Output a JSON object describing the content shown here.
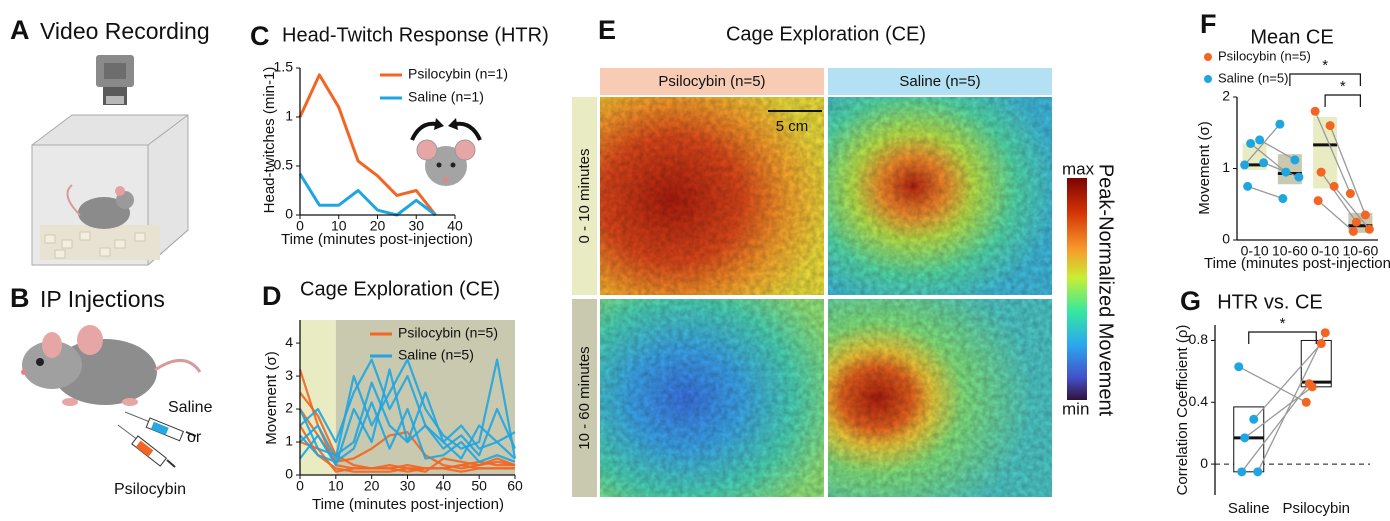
{
  "panels": {
    "A": {
      "letter": "A",
      "title": "Video Recording"
    },
    "B": {
      "letter": "B",
      "title": "IP Injections",
      "labels": [
        "Saline",
        "or",
        "Psilocybin"
      ]
    },
    "E": {
      "letter": "E",
      "title": "Cage Exploration (CE)",
      "columns": [
        "Psilocybin (n=5)",
        "Saline (n=5)"
      ],
      "rows": [
        "0 - 10 minutes",
        "10 - 60 minutes"
      ],
      "scale_bar": "5 cm",
      "colorbar": {
        "label": "Peak-Normalized Movement",
        "max": "max",
        "min": "min"
      }
    }
  },
  "chart_data": [
    {
      "panel": "C",
      "type": "line",
      "title": "Head-Twitch Response (HTR)",
      "x_label": "Time (minutes post-injection)",
      "y_label": "Head-twitches (min-1)",
      "x": [
        0,
        5,
        10,
        15,
        20,
        25,
        30,
        35
      ],
      "series": [
        {
          "name": "Psilocybin (n=1)",
          "color": "#f26522",
          "values": [
            1.0,
            1.43,
            1.1,
            0.55,
            0.4,
            0.2,
            0.25,
            0
          ]
        },
        {
          "name": "Saline (n=1)",
          "color": "#1fa5e0",
          "values": [
            0.42,
            0.1,
            0.1,
            0.25,
            0.05,
            0,
            0.15,
            0
          ]
        }
      ],
      "xlim": [
        0,
        40
      ],
      "xticks": [
        0,
        10,
        20,
        30,
        40
      ],
      "ylim": [
        0,
        1.5
      ],
      "yticks": [
        0,
        0.5,
        1,
        1.5
      ]
    },
    {
      "panel": "D",
      "type": "line",
      "title": "Cage Exploration (CE)",
      "x_label": "Time (minutes post-injection)",
      "y_label": "Movement (σ)",
      "x": [
        0,
        5,
        10,
        15,
        20,
        25,
        30,
        35,
        40,
        45,
        50,
        55,
        60
      ],
      "shading": [
        {
          "x0": 0,
          "x1": 10,
          "color": "#e9ecc2"
        },
        {
          "x0": 10,
          "x1": 60,
          "color": "#c8c9af"
        }
      ],
      "series": [
        {
          "name": "Psilocybin (n=5)",
          "color": "#f26522",
          "traces": [
            [
              3.2,
              1.5,
              0.3,
              0.2,
              0.2,
              0.2,
              0.3,
              0.2,
              0.2,
              0.3,
              0.4,
              0.3,
              0.3
            ],
            [
              2.5,
              1.8,
              0.6,
              0.3,
              0.2,
              0.2,
              0.1,
              0.2,
              0.2,
              0.1,
              0.2,
              0.2,
              0.2
            ],
            [
              2.0,
              1.2,
              0.4,
              0.5,
              0.8,
              1.2,
              1.3,
              0.6,
              0.3,
              0.2,
              0.3,
              0.5,
              0.3
            ],
            [
              1.5,
              0.6,
              0.2,
              0.1,
              0.1,
              0.1,
              0.2,
              0.1,
              0.5,
              0.4,
              0.3,
              0.4,
              0.3
            ],
            [
              1.0,
              0.8,
              0.1,
              0.2,
              0.2,
              0.3,
              0.2,
              0.2,
              0.2,
              0.3,
              0.2,
              0.2,
              0.2
            ]
          ]
        },
        {
          "name": "Saline (n=5)",
          "color": "#1fa5e0",
          "traces": [
            [
              1.5,
              2.0,
              1.0,
              2.5,
              3.5,
              2.0,
              3.0,
              1.5,
              1.0,
              1.5,
              0.8,
              1.0,
              1.3
            ],
            [
              1.0,
              1.5,
              0.5,
              3.0,
              1.5,
              2.5,
              3.5,
              2.0,
              1.2,
              0.8,
              1.0,
              3.5,
              0.5
            ],
            [
              2.0,
              0.8,
              0.6,
              1.0,
              2.8,
              1.5,
              1.0,
              2.5,
              1.0,
              0.5,
              1.5,
              1.0,
              0.5
            ],
            [
              0.5,
              1.2,
              0.3,
              2.0,
              1.0,
              3.2,
              1.0,
              1.5,
              0.8,
              1.2,
              0.6,
              2.0,
              0.8
            ],
            [
              1.2,
              0.6,
              0.4,
              0.8,
              2.2,
              0.8,
              2.0,
              0.5,
              0.6,
              1.0,
              0.4,
              0.6,
              0.4
            ]
          ]
        }
      ],
      "xlim": [
        0,
        60
      ],
      "xticks": [
        0,
        10,
        20,
        30,
        40,
        50,
        60
      ],
      "ylim": [
        0,
        4.7
      ],
      "yticks": [
        0,
        1,
        2,
        3,
        4
      ]
    },
    {
      "panel": "F",
      "type": "box",
      "title": "Mean CE",
      "x_label": "Time (minutes post-injection)",
      "y_label": "Movement (σ)",
      "categories": [
        "0-10",
        "10-60",
        "0-10",
        "10-60"
      ],
      "boxes": {
        "q1": [
          0.98,
          0.78,
          0.72,
          0.1
        ],
        "median": [
          1.05,
          0.93,
          1.33,
          0.2
        ],
        "q3": [
          1.35,
          1.2,
          1.72,
          0.38
        ],
        "colors": [
          "#e9ecc2",
          "#c8c9af",
          "#e9ecc2",
          "#c8c9af"
        ]
      },
      "series": [
        {
          "name": "Psilocybin (n=5)",
          "color": "#f26522",
          "values": [
            null,
            null,
            [
              1.8,
              1.6,
              0.95,
              0.75,
              0.55
            ],
            [
              0.65,
              0.35,
              0.25,
              0.15,
              0.12
            ]
          ]
        },
        {
          "name": "Saline (n=5)",
          "color": "#1fa5e0",
          "values": [
            [
              1.05,
              1.4,
              1.35,
              1.08,
              0.75
            ],
            [
              1.62,
              1.12,
              0.95,
              0.88,
              0.58
            ],
            null,
            null
          ]
        }
      ],
      "significance": [
        {
          "label": "*",
          "from": 1,
          "to": 3
        },
        {
          "label": "*",
          "from": 2,
          "to": 3
        }
      ],
      "ylim": [
        0,
        2
      ],
      "yticks": [
        0,
        1,
        2
      ]
    },
    {
      "panel": "G",
      "type": "box",
      "title": "HTR vs. CE",
      "y_label": "Correlation Coefficient (ρ)",
      "categories": [
        "Saline",
        "Psilocybin"
      ],
      "boxes": {
        "q1": [
          -0.05,
          0.5
        ],
        "median": [
          0.17,
          0.53
        ],
        "q3": [
          0.37,
          0.8
        ],
        "colors": [
          "#ffffff",
          "#ffffff"
        ]
      },
      "values": [
        [
          0.63,
          0.29,
          0.17,
          -0.05,
          -0.05
        ],
        [
          0.4,
          0.78,
          0.5,
          0.85,
          0.52
        ]
      ],
      "point_colors": [
        "#1fa5e0",
        "#f26522"
      ],
      "significance": [
        {
          "label": "*",
          "from": 0,
          "to": 1
        }
      ],
      "zero_line": true,
      "ylim": [
        -0.2,
        0.9
      ],
      "yticks": [
        0,
        0.4,
        0.8
      ]
    }
  ]
}
